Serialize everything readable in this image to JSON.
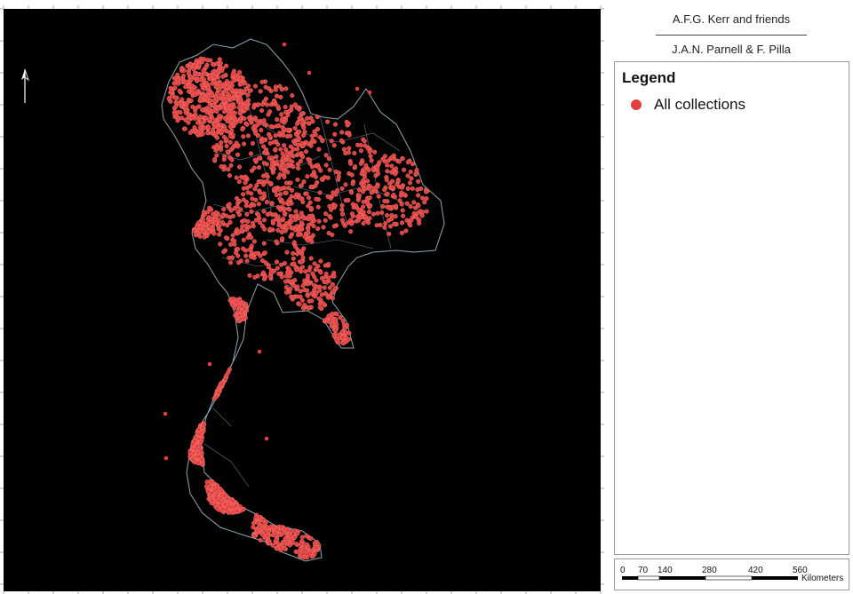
{
  "map": {
    "background_color": "#000000",
    "point_color": "#e04040",
    "boundary_color": "#8fa6b0",
    "north_arrow_icon": "north-arrow-icon"
  },
  "title": {
    "line1": "A.F.G. Kerr and friends",
    "line2": "J.A.N. Parnell & F. Pilla"
  },
  "legend": {
    "title": "Legend",
    "items": [
      {
        "label": "All collections",
        "color": "#e04040",
        "icon": "red-dot-icon"
      }
    ]
  },
  "scale_bar": {
    "ticks": [
      "0",
      "70",
      "140",
      "280",
      "420",
      "560"
    ],
    "unit": "Kilometers"
  }
}
